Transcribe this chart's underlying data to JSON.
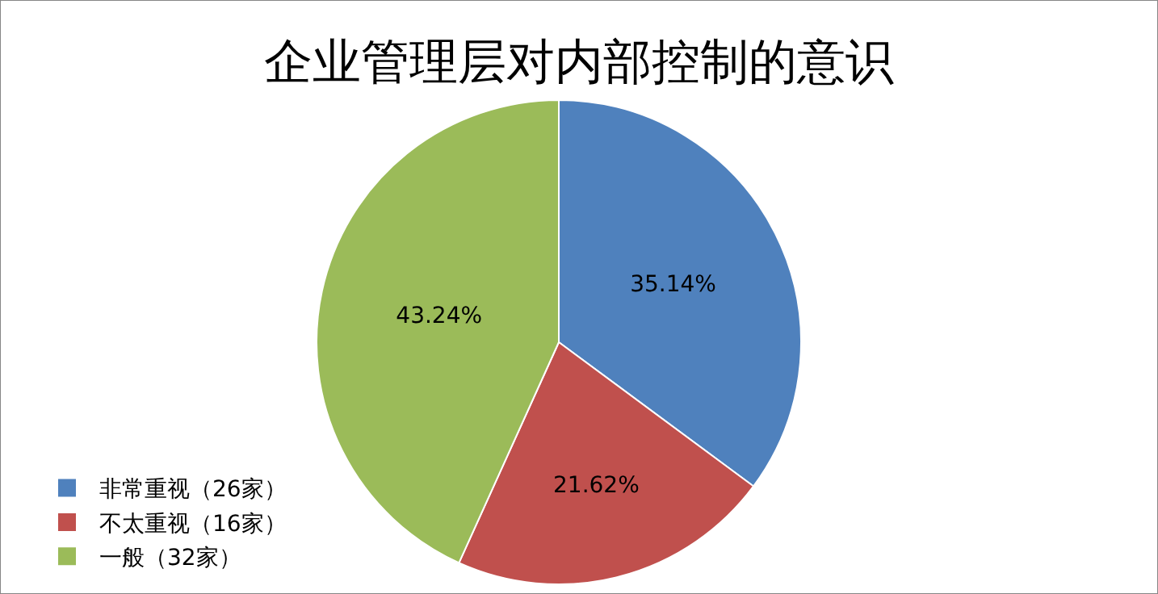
{
  "chart_data": {
    "type": "pie",
    "title": "企业管理层对内部控制的意识",
    "categories": [
      "非常重视（26家）",
      "不太重视（16家）",
      "一般（32家）"
    ],
    "values": [
      35.14,
      21.62,
      43.24
    ],
    "value_labels": [
      "35.14%",
      "21.62%",
      "43.24%"
    ],
    "colors": [
      "#4f81bd",
      "#c0504d",
      "#9bbb59"
    ],
    "legend": "bottom left"
  }
}
